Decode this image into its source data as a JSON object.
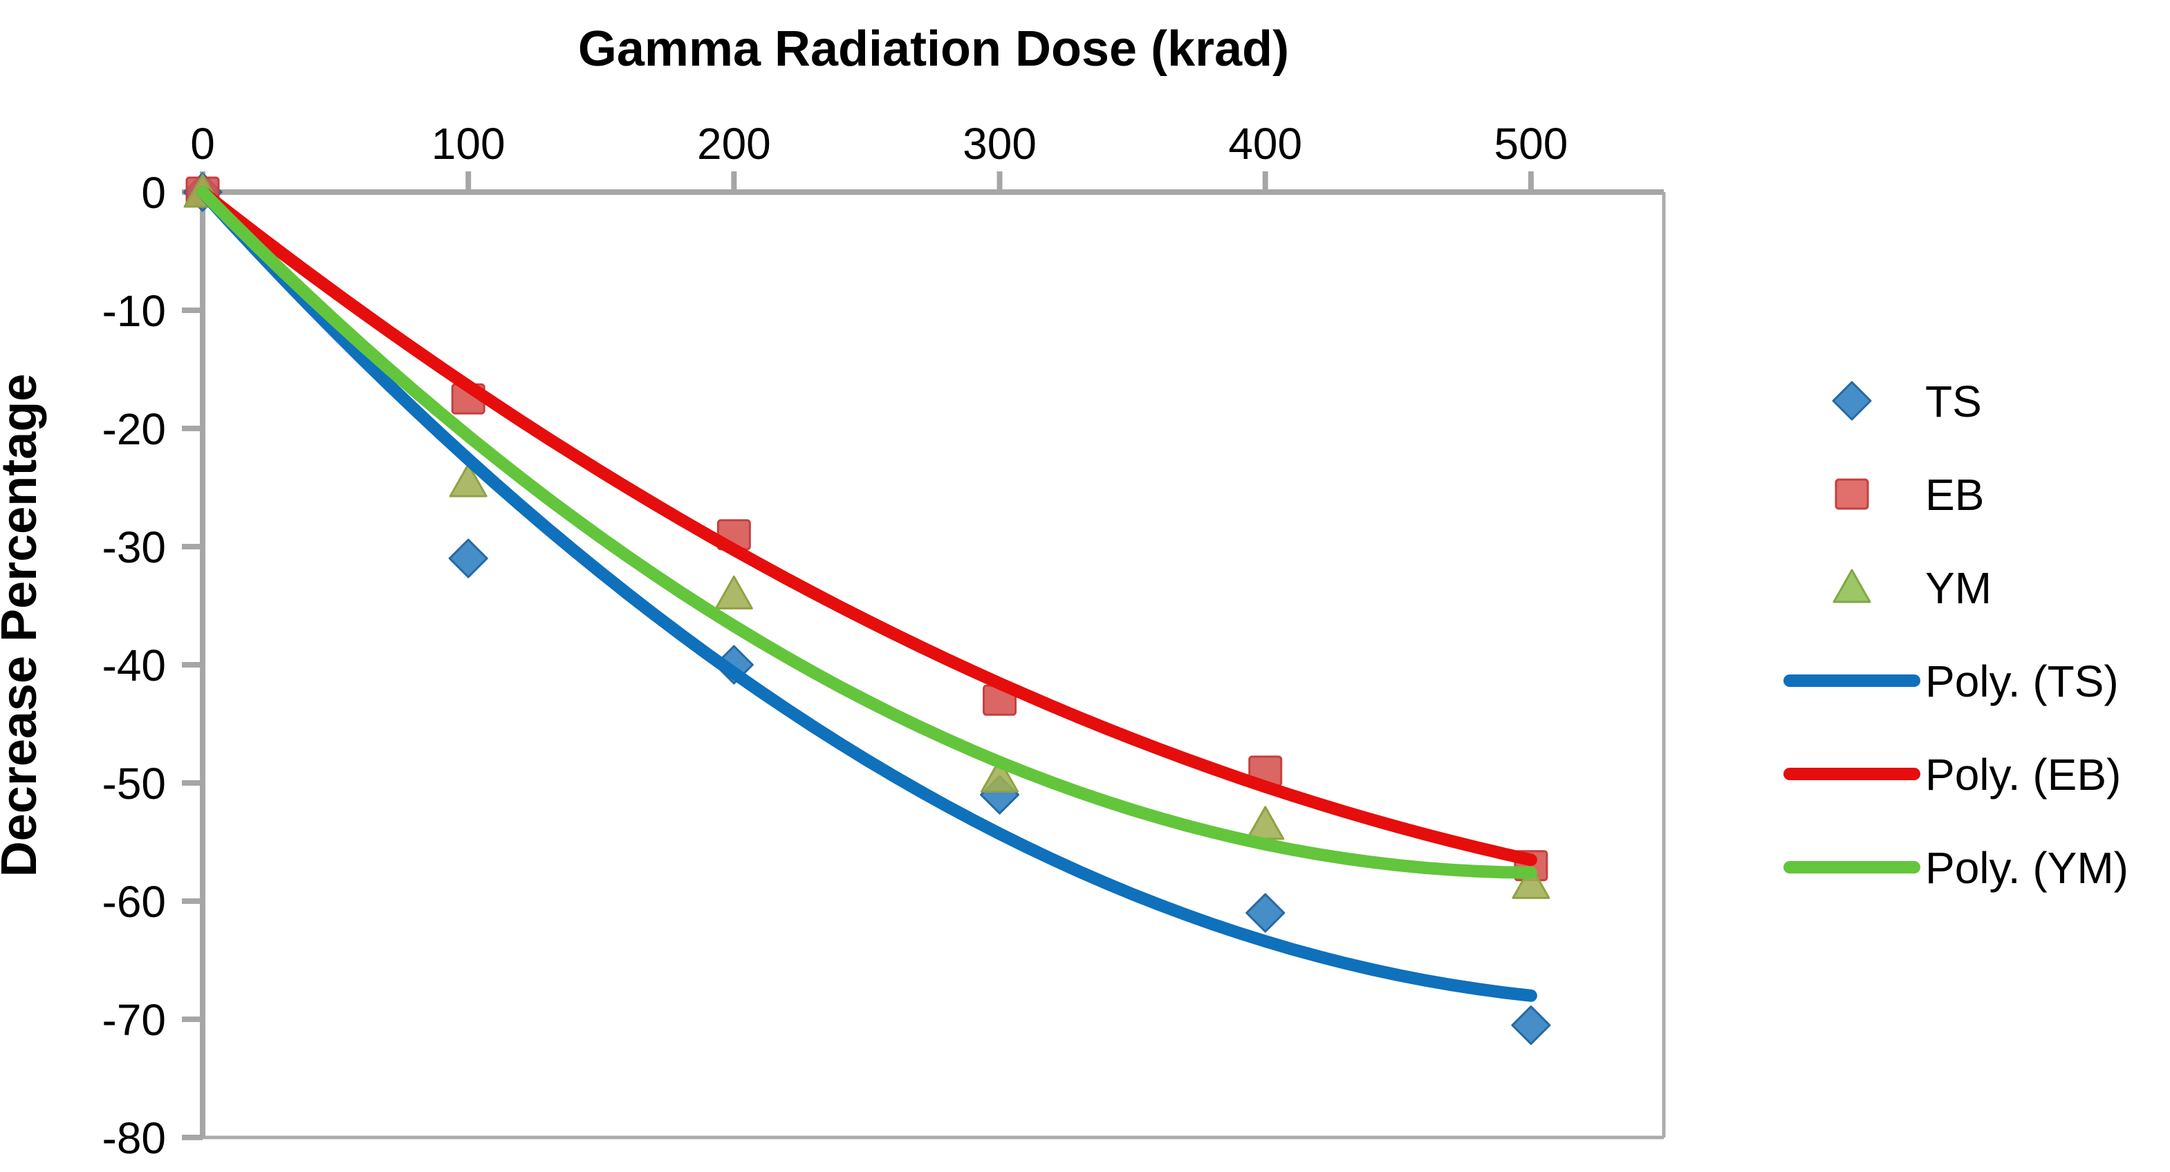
{
  "page": {
    "background": "#FFFFFF"
  },
  "chart_data": {
    "type": "scatter",
    "x_axis": {
      "title": "Gamma Radiation Dose (krad)",
      "position": "top",
      "ticks": [
        0,
        100,
        200,
        300,
        400,
        500
      ],
      "range": [
        0,
        550
      ]
    },
    "y_axis": {
      "title": "Decrease Percentage",
      "ticks": [
        0,
        -10,
        -20,
        -30,
        -40,
        -50,
        -60,
        -70,
        -80
      ],
      "range": [
        0,
        -80
      ]
    },
    "x": [
      0,
      100,
      200,
      300,
      400,
      500
    ],
    "series": [
      {
        "name": "TS",
        "marker": "diamond",
        "color": "#2C7EC0",
        "stroke": "#2569A4",
        "values": [
          0,
          -31,
          -40,
          -51,
          -61,
          -70.5
        ],
        "trend": {
          "type": "poly2",
          "intercept": 0,
          "color": "#0F70BC"
        }
      },
      {
        "name": "EB",
        "marker": "square",
        "color": "#D5524F",
        "stroke": "#C4403E",
        "values": [
          0,
          -17.5,
          -29,
          -43,
          -49,
          -57
        ],
        "trend": {
          "type": "poly2",
          "intercept": 0,
          "color": "#E60D0D"
        }
      },
      {
        "name": "YM",
        "marker": "triangle",
        "color": "#9FAF53",
        "stroke": "#8FA244",
        "values": [
          0,
          -24.5,
          -34,
          -49.5,
          -53.5,
          -58.5
        ],
        "trend": {
          "type": "poly2",
          "intercept": 0,
          "color": "#63C53C"
        }
      }
    ],
    "legend": {
      "position": "right",
      "items": [
        {
          "label": "TS",
          "swatch": "diamond",
          "color": "#2C7EC0",
          "stroke": "#2569A4"
        },
        {
          "label": "EB",
          "swatch": "square",
          "color": "#DD5B57",
          "stroke": "#C4403E"
        },
        {
          "label": "YM",
          "swatch": "triangle",
          "color": "#8FBE52",
          "stroke": "#7FA844"
        },
        {
          "label": "Poly. (TS)",
          "swatch": "line",
          "color": "#0F70BC"
        },
        {
          "label": "Poly. (EB)",
          "swatch": "line",
          "color": "#E60D0D"
        },
        {
          "label": "Poly. (YM)",
          "swatch": "line",
          "color": "#63C53C"
        }
      ]
    },
    "axis_color": "#A6A6A6",
    "border_color": "#ABABAB",
    "text_color": "#000000",
    "grid": false
  }
}
